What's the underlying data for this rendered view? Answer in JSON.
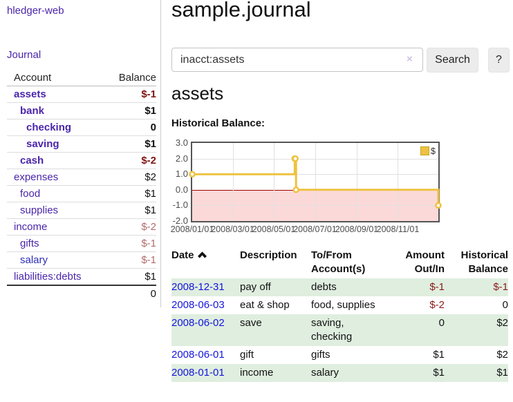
{
  "app": {
    "brand": "hledger-web",
    "nav": {
      "journal": "Journal"
    }
  },
  "sidebar": {
    "col_account": "Account",
    "col_balance": "Balance",
    "accounts": [
      {
        "name": "assets",
        "balance": "$-1",
        "level": 1,
        "bold": true,
        "balance_style": "neg-dark"
      },
      {
        "name": "bank",
        "balance": "$1",
        "level": 2,
        "bold": true,
        "balance_style": ""
      },
      {
        "name": "checking",
        "balance": "0",
        "level": 3,
        "bold": true,
        "balance_style": ""
      },
      {
        "name": "saving",
        "balance": "$1",
        "level": 3,
        "bold": true,
        "balance_style": ""
      },
      {
        "name": "cash",
        "balance": "$-2",
        "level": 2,
        "bold": true,
        "balance_style": "neg-dark"
      },
      {
        "name": "expenses",
        "balance": "$2",
        "level": 1,
        "bold": false,
        "balance_style": ""
      },
      {
        "name": "food",
        "balance": "$1",
        "level": 2,
        "bold": false,
        "balance_style": ""
      },
      {
        "name": "supplies",
        "balance": "$1",
        "level": 2,
        "bold": false,
        "balance_style": ""
      },
      {
        "name": "income",
        "balance": "$-2",
        "level": 1,
        "bold": false,
        "balance_style": "neg-light"
      },
      {
        "name": "gifts",
        "balance": "$-1",
        "level": 2,
        "bold": false,
        "balance_style": "neg-light"
      },
      {
        "name": "salary",
        "balance": "$-1",
        "level": 2,
        "bold": false,
        "balance_style": "neg-light",
        "link_style": "blue"
      },
      {
        "name": "liabilities:debts",
        "balance": "$1",
        "level": 1,
        "bold": false,
        "balance_style": ""
      }
    ],
    "total": "0"
  },
  "header": {
    "title": "sample.journal"
  },
  "search": {
    "value": "inacct:assets",
    "clear_symbol": "×",
    "submit_label": "Search",
    "help_label": "?"
  },
  "account_page": {
    "heading": "assets",
    "chart_title": "Historical Balance:"
  },
  "chart_data": {
    "type": "line",
    "step": true,
    "series": [
      {
        "name": "$",
        "color": "#edc240",
        "points": [
          [
            "2008-01-01",
            1
          ],
          [
            "2008-06-01",
            2
          ],
          [
            "2008-06-02",
            2
          ],
          [
            "2008-06-03",
            0
          ],
          [
            "2008-12-31",
            -1
          ]
        ]
      }
    ],
    "x_range": [
      "2008-01-01",
      "2008-12-31"
    ],
    "ylim": [
      -2,
      3
    ],
    "y_ticks": [
      3.0,
      2.0,
      1.0,
      0.0,
      -1.0,
      -2.0
    ],
    "y_tick_labels": [
      "3.0",
      "2.0",
      "1.0",
      "0.0",
      "-1.0",
      "-2.0"
    ],
    "x_tick_labels": [
      "2008/01/01",
      "2008/03/01",
      "2008/05/01",
      "2008/07/01",
      "2008/09/01",
      "2008/11/01"
    ],
    "grid": true,
    "legend_position": "top-right",
    "negative_region": {
      "below": 0,
      "fill": "#fbd9d9",
      "line_color": "#a00000"
    }
  },
  "register": {
    "headers": {
      "date": "Date",
      "description": "Description",
      "accounts": "To/From\nAccount(s)",
      "amount": "Amount\nOut/In",
      "balance": "Historical\nBalance"
    },
    "rows": [
      {
        "date": "2008-12-31",
        "description": "pay off",
        "accounts": "debts",
        "amount": "$-1",
        "amount_neg": true,
        "balance": "$-1",
        "balance_neg": true,
        "green": true
      },
      {
        "date": "2008-06-03",
        "description": "eat & shop",
        "accounts": "food, supplies",
        "amount": "$-2",
        "amount_neg": true,
        "balance": "0",
        "balance_neg": false,
        "green": false
      },
      {
        "date": "2008-06-02",
        "description": "save",
        "accounts": "saving,\nchecking",
        "amount": "0",
        "amount_neg": false,
        "balance": "$2",
        "balance_neg": false,
        "green": true
      },
      {
        "date": "2008-06-01",
        "description": "gift",
        "accounts": "gifts",
        "amount": "$1",
        "amount_neg": false,
        "balance": "$2",
        "balance_neg": false,
        "green": false
      },
      {
        "date": "2008-01-01",
        "description": "income",
        "accounts": "salary",
        "amount": "$1",
        "amount_neg": false,
        "balance": "$1",
        "balance_neg": false,
        "green": true
      }
    ]
  },
  "colors": {
    "link_purple": "#4a25aa",
    "link_blue_date": "#1414dd",
    "negative_bold": "#7e1414",
    "negative_muted": "#b36b6b",
    "row_green": "#dfeedf",
    "series_yellow": "#edc240",
    "negative_region_pink": "#fbd9d9",
    "zero_line_red": "#a00000"
  }
}
